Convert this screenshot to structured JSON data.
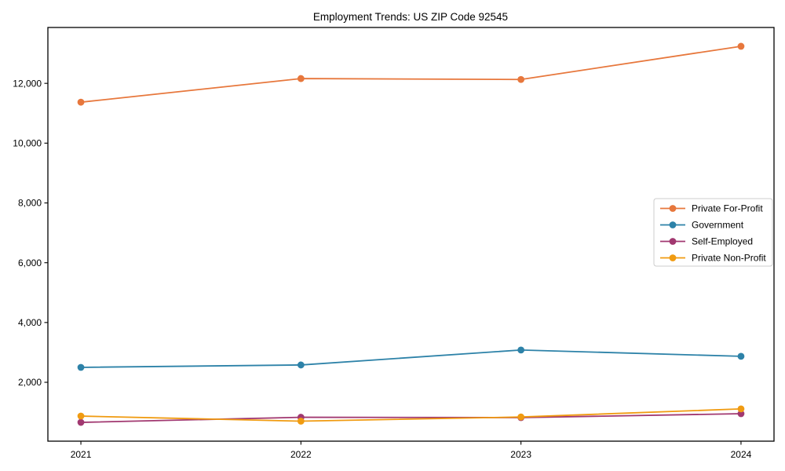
{
  "chart_data": {
    "type": "line",
    "title": "Employment Trends: US ZIP Code 92545",
    "xlabel": "",
    "ylabel": "",
    "categories": [
      "2021",
      "2022",
      "2023",
      "2024"
    ],
    "series": [
      {
        "name": "Private For-Profit",
        "color": "#e7773c",
        "values": [
          11370,
          12160,
          12130,
          13240
        ]
      },
      {
        "name": "Government",
        "color": "#2d82a8",
        "values": [
          2500,
          2580,
          3080,
          2870
        ]
      },
      {
        "name": "Self-Employed",
        "color": "#a13870",
        "values": [
          660,
          830,
          820,
          950
        ]
      },
      {
        "name": "Private Non-Profit",
        "color": "#f09b11",
        "values": [
          870,
          700,
          840,
          1110
        ]
      }
    ],
    "yticks": [
      2000,
      4000,
      6000,
      8000,
      10000,
      12000
    ],
    "ytick_labels": [
      "2,000",
      "4,000",
      "6,000",
      "8,000",
      "10,000",
      "12,000"
    ],
    "ylim": [
      31,
      13869
    ],
    "grid": false,
    "legend_position": "center-right",
    "marker": "circle",
    "frame": "box"
  }
}
